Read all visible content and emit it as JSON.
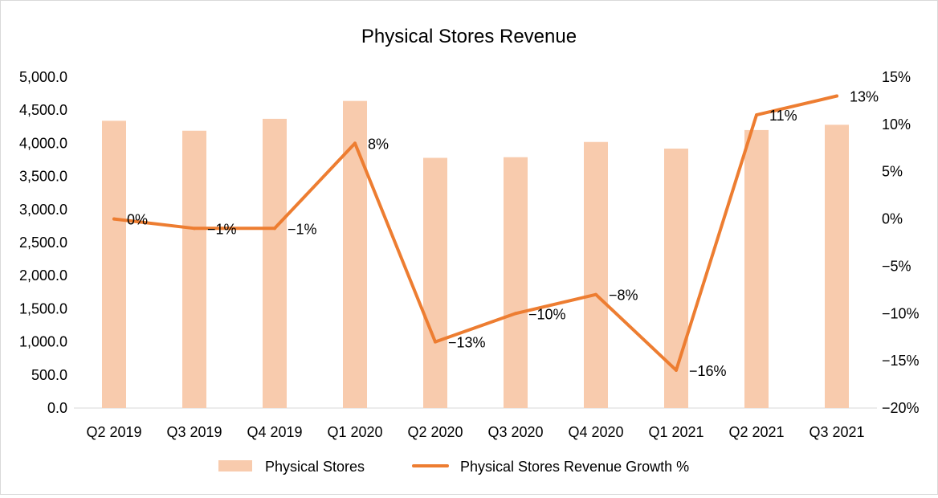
{
  "chart_data": {
    "type": "bar",
    "title": "Physical Stores Revenue",
    "categories": [
      "Q2 2019",
      "Q3 2019",
      "Q4 2019",
      "Q1 2020",
      "Q2 2020",
      "Q3 2020",
      "Q4 2020",
      "Q1 2021",
      "Q2 2021",
      "Q3 2021"
    ],
    "series": [
      {
        "name": "Physical Stores",
        "type": "bar",
        "axis": "left",
        "color": "#f8cbad",
        "values": [
          4340,
          4190,
          4370,
          4640,
          3780,
          3790,
          4020,
          3920,
          4200,
          4280
        ]
      },
      {
        "name": "Physical Stores Revenue Growth %",
        "type": "line",
        "axis": "right",
        "color": "#ed7d31",
        "values": [
          0,
          -1,
          -1,
          8,
          -13,
          -10,
          -8,
          -16,
          11,
          13
        ],
        "labels": [
          "0%",
          "−1%",
          "−1%",
          "8%",
          "−13%",
          "−10%",
          "−8%",
          "−16%",
          "11%",
          "13%"
        ]
      }
    ],
    "y_left": {
      "min": 0,
      "max": 5000,
      "step": 500,
      "ticks": [
        "0.0",
        "500.0",
        "1,000.0",
        "1,500.0",
        "2,000.0",
        "2,500.0",
        "3,000.0",
        "3,500.0",
        "4,000.0",
        "4,500.0",
        "5,000.0"
      ]
    },
    "y_right": {
      "min": -20,
      "max": 15,
      "step": 5,
      "ticks": [
        "−20%",
        "−15%",
        "−10%",
        "−5%",
        "0%",
        "5%",
        "10%",
        "15%"
      ]
    },
    "legend": {
      "position": "bottom",
      "entries": [
        "Physical Stores",
        "Physical Stores Revenue Growth %"
      ]
    },
    "grid": false
  }
}
